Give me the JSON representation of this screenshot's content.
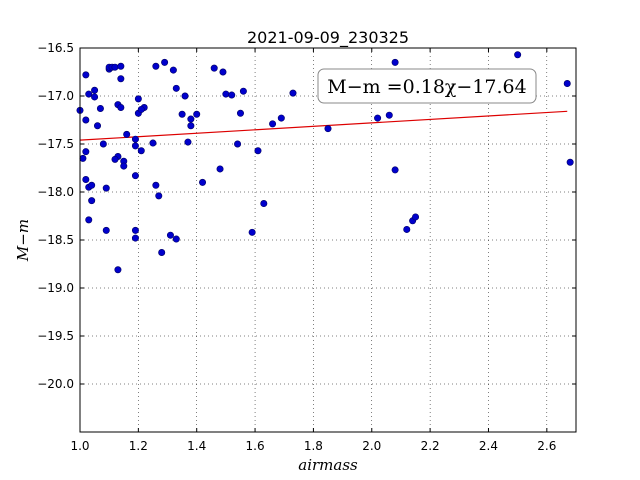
{
  "chart_data": {
    "type": "scatter",
    "title": "2021-09-09_230325",
    "xlabel": "airmass",
    "ylabel": "M−m",
    "xlim": [
      1.0,
      2.7
    ],
    "ylim": [
      -16.5,
      -20.5
    ],
    "y_inverted": true,
    "grid": true,
    "grid_style": "dotted",
    "xticks": [
      "1.0",
      "1.2",
      "1.4",
      "1.6",
      "1.8",
      "2.0",
      "2.2",
      "2.4",
      "2.6"
    ],
    "yticks": [
      "−16.5",
      "−17.0",
      "−17.5",
      "−18.0",
      "−18.5",
      "−19.0",
      "−19.5",
      "−20.0"
    ],
    "annotation": "M−m =0.18χ−17.64",
    "annotation_placement": "top-right",
    "point_color": "#0000cc",
    "line_color": "#dd0000",
    "fit": {
      "slope": 0.18,
      "intercept": -17.64,
      "x_range": [
        1.0,
        2.67
      ]
    },
    "series": [
      {
        "x": [
          1.0,
          1.01,
          1.02,
          1.02,
          1.03,
          1.02,
          1.02,
          1.03,
          1.04,
          1.05,
          1.04,
          1.05,
          1.06,
          1.03,
          1.07,
          1.08,
          1.09,
          1.09,
          1.1,
          1.1,
          1.11,
          1.12,
          1.13,
          1.13,
          1.14,
          1.14,
          1.14,
          1.12,
          1.15,
          1.16,
          1.13,
          1.15,
          1.19,
          1.19,
          1.19,
          1.2,
          1.2,
          1.19,
          1.19,
          1.21,
          1.22,
          1.21,
          1.25,
          1.26,
          1.27,
          1.26,
          1.28,
          1.29,
          1.31,
          1.32,
          1.33,
          1.33,
          1.35,
          1.36,
          1.37,
          1.38,
          1.38,
          1.4,
          1.42,
          1.46,
          1.48,
          1.49,
          1.5,
          1.52,
          1.54,
          1.55,
          1.56,
          1.59,
          1.61,
          1.63,
          1.66,
          1.69,
          1.73,
          1.85,
          2.02,
          2.06,
          2.08,
          2.08,
          2.12,
          2.14,
          2.15,
          2.5,
          2.67,
          2.68
        ],
        "y": [
          -17.15,
          -17.65,
          -16.78,
          -17.25,
          -16.98,
          -17.58,
          -17.87,
          -17.95,
          -17.93,
          -16.94,
          -18.09,
          -17.01,
          -17.31,
          -18.29,
          -17.13,
          -17.5,
          -18.4,
          -17.96,
          -16.72,
          -16.7,
          -16.7,
          -16.7,
          -17.09,
          -17.63,
          -16.82,
          -16.69,
          -17.12,
          -17.66,
          -17.68,
          -17.4,
          -18.81,
          -17.73,
          -17.45,
          -17.52,
          -17.83,
          -17.03,
          -17.18,
          -18.4,
          -18.48,
          -17.57,
          -17.12,
          -17.14,
          -17.49,
          -16.69,
          -18.04,
          -17.93,
          -18.63,
          -16.65,
          -18.45,
          -16.73,
          -16.92,
          -18.49,
          -17.19,
          -17.0,
          -17.48,
          -17.24,
          -17.31,
          -17.19,
          -17.9,
          -16.71,
          -17.76,
          -16.75,
          -16.98,
          -16.99,
          -17.5,
          -17.18,
          -16.95,
          -18.42,
          -17.57,
          -18.12,
          -17.29,
          -17.23,
          -16.97,
          -17.34,
          -17.23,
          -17.2,
          -16.65,
          -17.77,
          -18.39,
          -18.3,
          -18.26,
          -16.57,
          -16.87,
          -17.69
        ]
      }
    ]
  }
}
